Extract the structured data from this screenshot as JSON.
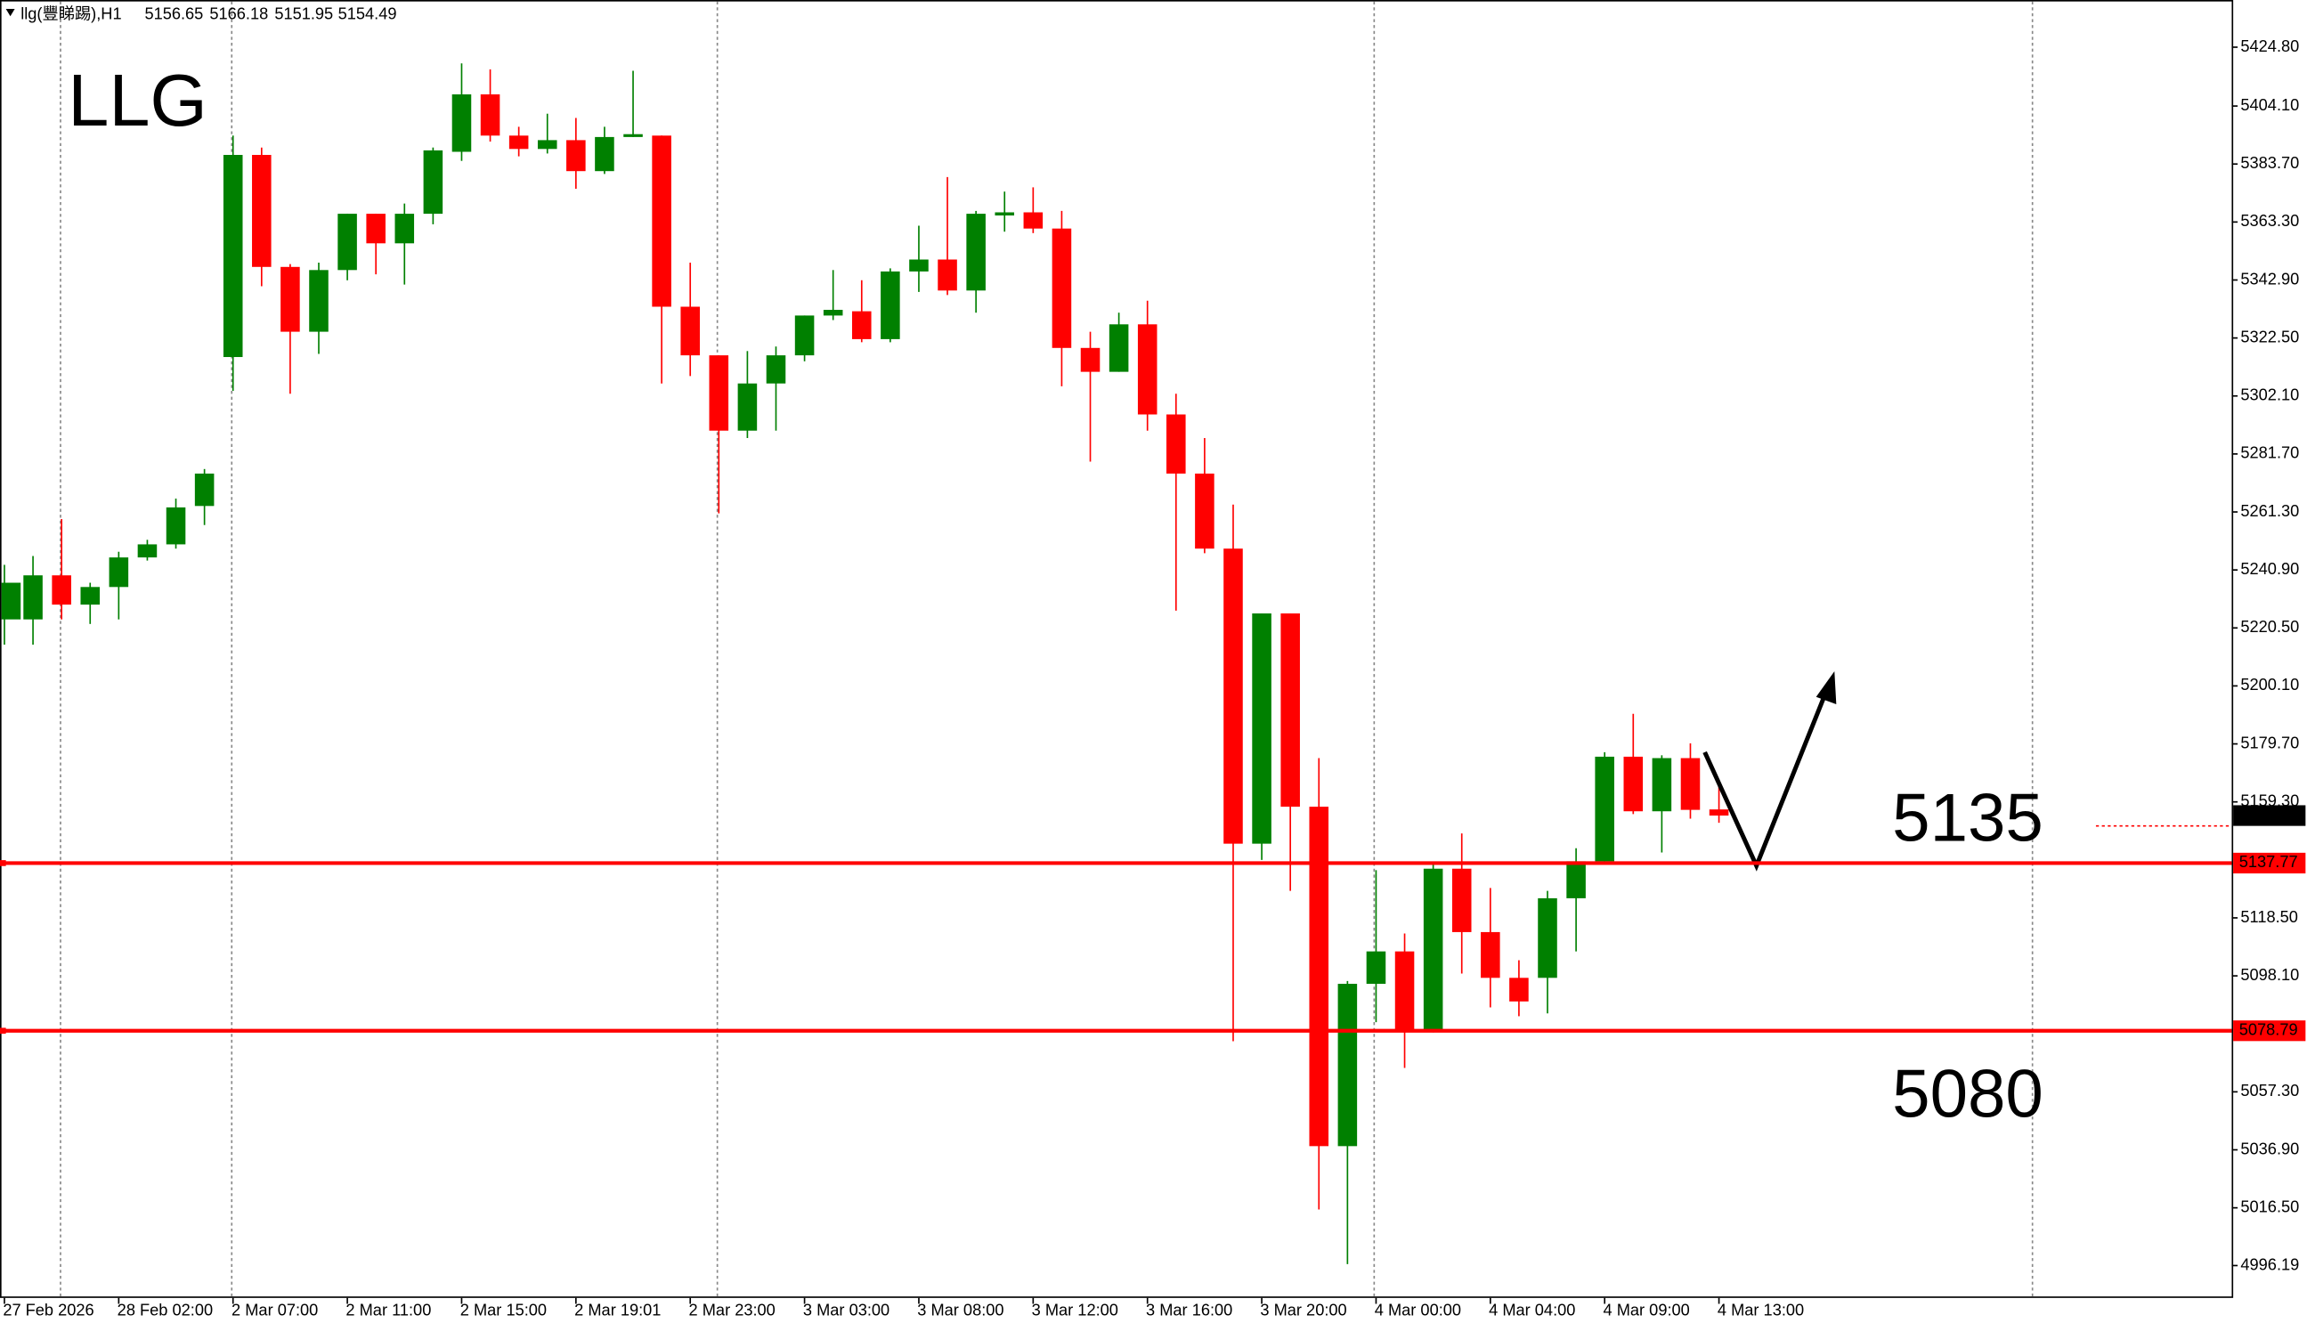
{
  "chart_data": {
    "type": "candlestick",
    "symbol": "llg(豐睇踢),H1",
    "title": "LLG",
    "categories": [
      "27 Feb 2026",
      null,
      null,
      null,
      "28 Feb 02:00",
      null,
      null,
      null,
      "2 Mar 07:00",
      null,
      null,
      null,
      "2 Mar 11:00",
      null,
      null,
      null,
      "2 Mar 15:00",
      null,
      null,
      null,
      "2 Mar 19:01",
      null,
      null,
      null,
      "2 Mar 23:00",
      null,
      null,
      null,
      "3 Mar 03:00",
      null,
      null,
      null,
      "3 Mar 08:00",
      null,
      null,
      null,
      "3 Mar 12:00",
      null,
      null,
      null,
      "3 Mar 16:00",
      null,
      null,
      null,
      "3 Mar 20:00",
      null,
      null,
      null,
      "4 Mar 00:00",
      null,
      null,
      null,
      "4 Mar 04:00",
      null,
      null,
      null,
      "4 Mar 09:00",
      null,
      null,
      null,
      "4 Mar 13:00"
    ],
    "series": {
      "open": [
        5223.5,
        5223.5,
        5239.0,
        5228.7,
        5234.9,
        5245.3,
        5249.9,
        5263.4,
        5315.8,
        5386.9,
        5347.5,
        5324.7,
        5346.4,
        5366.2,
        5355.8,
        5366.2,
        5388.0,
        5408.2,
        5393.7,
        5389.0,
        5392.1,
        5381.2,
        5393.2,
        5393.7,
        5333.5,
        5316.4,
        5289.9,
        5306.5,
        5316.4,
        5330.4,
        5331.9,
        5322.1,
        5345.9,
        5350.1,
        5339.2,
        5365.6,
        5366.7,
        5361.0,
        5319.0,
        5310.6,
        5327.3,
        5295.6,
        5274.8,
        5248.4,
        5144.6,
        5225.6,
        5157.6,
        5038.2,
        5095.3,
        5106.7,
        5079.2,
        5135.8,
        5113.5,
        5097.4,
        5097.4,
        5125.4,
        5138.4,
        5175.2,
        5156.0,
        5174.7,
        5156.65
      ],
      "high": [
        5242.7,
        5245.8,
        5258.8,
        5236.4,
        5247.3,
        5251.5,
        5266.0,
        5276.4,
        5393.7,
        5389.5,
        5348.5,
        5349.0,
        5366.2,
        5366.2,
        5369.8,
        5389.5,
        5419.1,
        5417.0,
        5396.8,
        5401.4,
        5399.9,
        5396.8,
        5416.5,
        5393.7,
        5349.0,
        5316.4,
        5317.9,
        5319.5,
        5330.4,
        5346.4,
        5342.8,
        5347.0,
        5362.0,
        5379.1,
        5367.2,
        5374.0,
        5375.5,
        5367.2,
        5324.7,
        5331.4,
        5335.6,
        5302.9,
        5287.3,
        5263.9,
        5225.6,
        5225.6,
        5174.7,
        5096.3,
        5135.3,
        5113.0,
        5137.9,
        5148.2,
        5129.0,
        5103.6,
        5128.0,
        5143.0,
        5176.8,
        5190.3,
        5175.7,
        5179.9,
        5166.18
      ],
      "low": [
        5214.6,
        5214.6,
        5223.5,
        5221.9,
        5223.5,
        5244.2,
        5248.4,
        5256.7,
        5303.9,
        5340.7,
        5302.9,
        5316.9,
        5342.8,
        5344.9,
        5341.3,
        5362.5,
        5384.8,
        5391.6,
        5386.4,
        5387.4,
        5375.0,
        5380.2,
        5393.2,
        5306.5,
        5309.1,
        5260.8,
        5287.3,
        5289.9,
        5314.3,
        5328.8,
        5321.0,
        5321.0,
        5338.7,
        5337.6,
        5331.4,
        5359.9,
        5359.4,
        5305.5,
        5279.0,
        5310.6,
        5289.9,
        5226.6,
        5246.8,
        5075.1,
        5138.9,
        5128.0,
        5015.9,
        4996.7,
        5081.8,
        5065.7,
        5078.2,
        5098.9,
        5087.0,
        5083.9,
        5084.9,
        5106.7,
        5138.4,
        5155.0,
        5141.5,
        5153.4,
        5151.95
      ],
      "close": [
        5236.4,
        5239.0,
        5228.7,
        5234.9,
        5245.3,
        5249.9,
        5262.9,
        5274.8,
        5386.9,
        5347.5,
        5324.7,
        5346.4,
        5366.2,
        5355.8,
        5366.2,
        5388.5,
        5408.2,
        5393.7,
        5389.0,
        5392.1,
        5381.2,
        5393.2,
        5394.2,
        5333.5,
        5316.4,
        5289.9,
        5306.5,
        5316.4,
        5330.4,
        5332.4,
        5322.1,
        5345.9,
        5350.1,
        5339.2,
        5366.2,
        5366.7,
        5361.0,
        5319.0,
        5310.6,
        5327.3,
        5295.6,
        5274.8,
        5248.4,
        5144.6,
        5225.6,
        5157.6,
        5038.2,
        5095.3,
        5106.7,
        5079.2,
        5135.8,
        5113.5,
        5097.4,
        5089.1,
        5125.4,
        5138.4,
        5175.2,
        5156.0,
        5174.7,
        5156.5,
        5154.49
      ]
    },
    "up_color": "#008000",
    "down_color": "#ff0000",
    "ylim": [
      4984.8,
      5441.4
    ],
    "yticks": [
      {
        "value": 5424.8,
        "label": "5424.80"
      },
      {
        "value": 5404.1,
        "label": "5404.10"
      },
      {
        "value": 5383.7,
        "label": "5383.70"
      },
      {
        "value": 5363.3,
        "label": "5363.30"
      },
      {
        "value": 5342.9,
        "label": "5342.90"
      },
      {
        "value": 5322.5,
        "label": "5322.50"
      },
      {
        "value": 5302.1,
        "label": "5302.10"
      },
      {
        "value": 5281.7,
        "label": "5281.70"
      },
      {
        "value": 5261.3,
        "label": "5261.30"
      },
      {
        "value": 5240.9,
        "label": "5240.90"
      },
      {
        "value": 5220.5,
        "label": "5220.50"
      },
      {
        "value": 5200.1,
        "label": "5200.10"
      },
      {
        "value": 5179.7,
        "label": "5179.70"
      },
      {
        "value": 5159.3,
        "label": "5159.30"
      },
      {
        "value": 5118.5,
        "label": "5118.50"
      },
      {
        "value": 5098.1,
        "label": "5098.10"
      },
      {
        "value": 5057.3,
        "label": "5057.30"
      },
      {
        "value": 5036.9,
        "label": "5036.90"
      },
      {
        "value": 5016.5,
        "label": "5016.50"
      },
      4996.19
    ],
    "levels": [
      5137.77,
      5078.79
    ],
    "level_color": "#ff0000",
    "annotations": [
      "5135",
      "5080"
    ]
  }
}
